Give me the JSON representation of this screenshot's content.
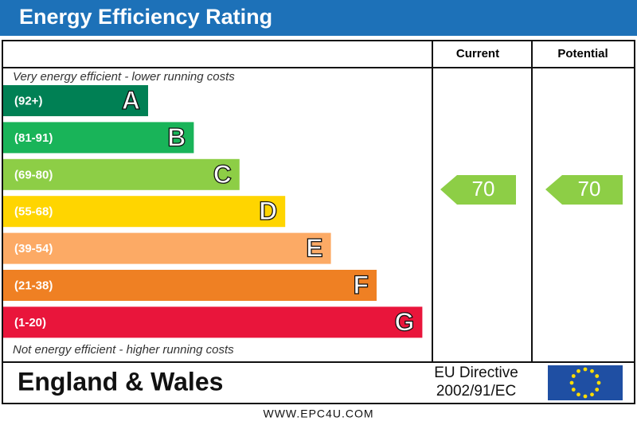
{
  "header": {
    "title": "Energy Efficiency Rating"
  },
  "columns": {
    "current": "Current",
    "potential": "Potential"
  },
  "top_note": "Very energy efficient - lower running costs",
  "bottom_note": "Not energy efficient - higher running costs",
  "bands": [
    {
      "range": "(92+)",
      "letter": "A",
      "color": "#008054"
    },
    {
      "range": "(81-91)",
      "letter": "B",
      "color": "#19b459"
    },
    {
      "range": "(69-80)",
      "letter": "C",
      "color": "#8dce46"
    },
    {
      "range": "(55-68)",
      "letter": "D",
      "color": "#ffd500"
    },
    {
      "range": "(39-54)",
      "letter": "E",
      "color": "#fcaa65"
    },
    {
      "range": "(21-38)",
      "letter": "F",
      "color": "#ef8023"
    },
    {
      "range": "(1-20)",
      "letter": "G",
      "color": "#e9153b"
    }
  ],
  "ratings": {
    "current": "70",
    "potential": "70"
  },
  "footer": {
    "region": "England & Wales",
    "directive_line1": "EU Directive",
    "directive_line2": "2002/91/EC",
    "website": "WWW.EPC4U.COM"
  }
}
